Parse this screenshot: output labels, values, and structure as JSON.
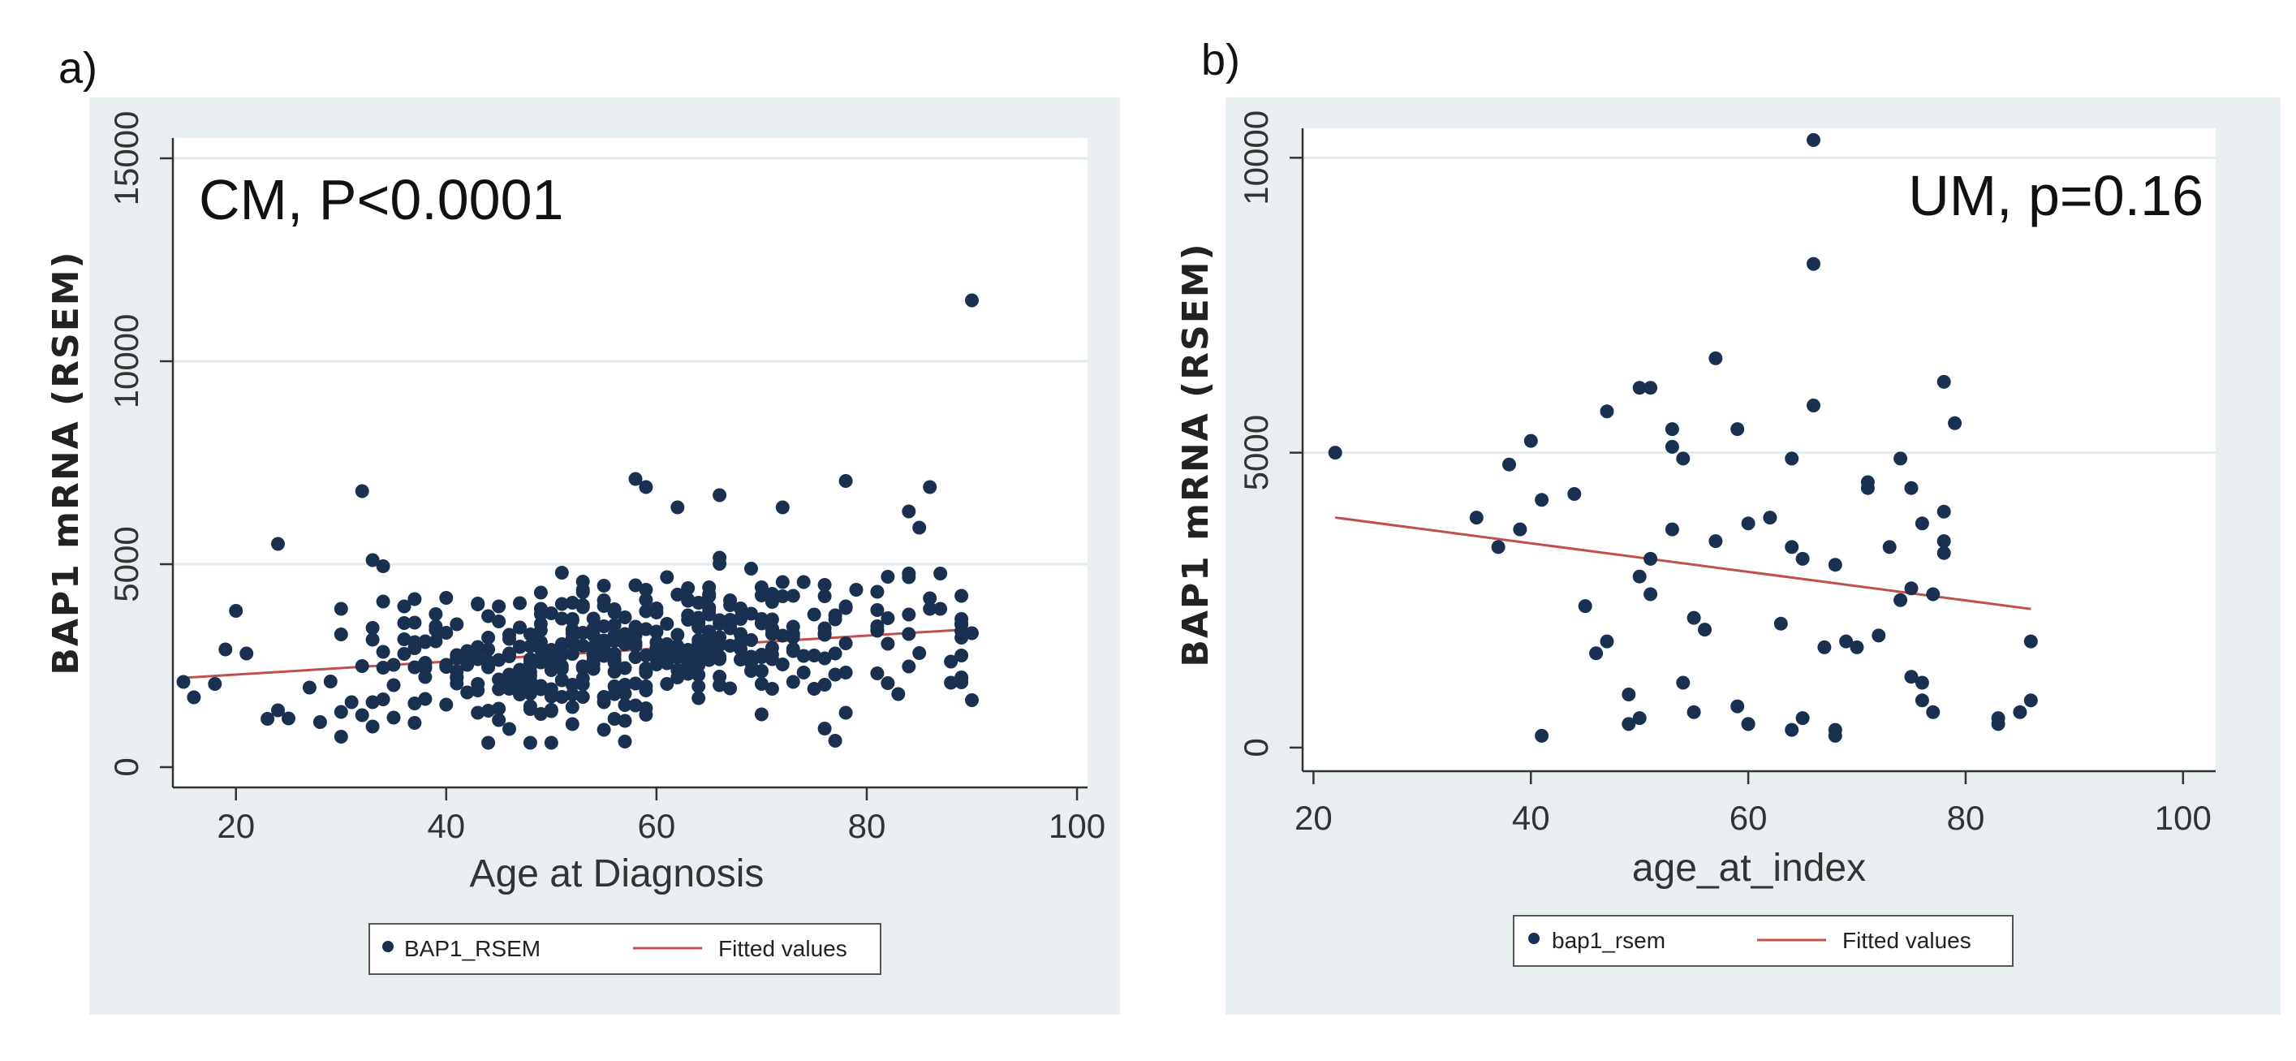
{
  "chart_data": [
    {
      "type": "scatter",
      "panel_label": "a)",
      "annotation": "CM, P<0.0001",
      "xlabel": "Age at Diagnosis",
      "ylabel": "BAP1 mRNA (RSEM)",
      "xlim": [
        14,
        101
      ],
      "ylim": [
        -500,
        15500
      ],
      "xticks": [
        20,
        40,
        60,
        80,
        100
      ],
      "yticks": [
        0,
        5000,
        10000,
        15000
      ],
      "xtick_labels": [
        "20",
        "40",
        "60",
        "80",
        "100"
      ],
      "ytick_labels": [
        "0",
        "5000",
        "10000",
        "15000"
      ],
      "colors": {
        "points": "#1a3050",
        "fit": "#c0504d"
      },
      "legend": [
        {
          "kind": "marker",
          "label": "BAP1_RSEM"
        },
        {
          "kind": "line",
          "label": "Fitted values"
        }
      ],
      "fit_line": {
        "x": [
          15,
          90
        ],
        "y": [
          2200,
          3400
        ]
      },
      "series": [
        {
          "name": "BAP1_RSEM",
          "seed": 7,
          "n": 430,
          "x": [],
          "y": []
        }
      ],
      "extra_points": [
        [
          90,
          11500
        ],
        [
          32,
          6800
        ],
        [
          24,
          5500
        ],
        [
          58,
          7100
        ],
        [
          59,
          6900
        ],
        [
          78,
          7050
        ],
        [
          86,
          6900
        ],
        [
          84,
          6300
        ],
        [
          85,
          5900
        ],
        [
          66,
          6700
        ],
        [
          62,
          6400
        ],
        [
          72,
          6400
        ],
        [
          33,
          5100
        ],
        [
          34,
          4950
        ],
        [
          20,
          3850
        ],
        [
          30,
          3900
        ],
        [
          15,
          2100
        ],
        [
          18,
          2050
        ],
        [
          25,
          1200
        ],
        [
          24,
          1400
        ],
        [
          77,
          650
        ],
        [
          76,
          950
        ],
        [
          90,
          1650
        ],
        [
          90,
          3300
        ],
        [
          19,
          2900
        ],
        [
          21,
          2800
        ],
        [
          88,
          2600
        ],
        [
          87,
          3900
        ]
      ]
    },
    {
      "type": "scatter",
      "panel_label": "b)",
      "annotation": "UM, p=0.16",
      "xlabel": "age_at_index",
      "ylabel": "BAP1 mRNA (RSEM)",
      "xlim": [
        19,
        103
      ],
      "ylim": [
        -400,
        10500
      ],
      "xticks": [
        20,
        40,
        60,
        80,
        100
      ],
      "yticks": [
        0,
        5000,
        10000
      ],
      "xtick_labels": [
        "20",
        "40",
        "60",
        "80",
        "100"
      ],
      "ytick_labels": [
        "0",
        "5000",
        "10000"
      ],
      "colors": {
        "points": "#1a3050",
        "fit": "#c0504d"
      },
      "legend": [
        {
          "kind": "marker",
          "label": "bap1_rsem"
        },
        {
          "kind": "line",
          "label": "Fitted values"
        }
      ],
      "fit_line": {
        "x": [
          22,
          86
        ],
        "y": [
          3900,
          2350
        ]
      },
      "series": [
        {
          "name": "bap1_rsem",
          "x": [
            22,
            35,
            37,
            38,
            39,
            40,
            41,
            41,
            44,
            45,
            46,
            47,
            47,
            49,
            49,
            50,
            50,
            50,
            51,
            51,
            51,
            53,
            53,
            53,
            54,
            54,
            55,
            55,
            56,
            57,
            57,
            59,
            59,
            60,
            60,
            60,
            62,
            63,
            64,
            64,
            64,
            65,
            65,
            66,
            66,
            66,
            67,
            68,
            68,
            68,
            69,
            70,
            71,
            71,
            72,
            73,
            74,
            74,
            75,
            75,
            75,
            76,
            76,
            76,
            77,
            77,
            78,
            78,
            78,
            78,
            79,
            83,
            83,
            85,
            86,
            86
          ],
          "y": [
            5000,
            3900,
            3400,
            4800,
            3700,
            5200,
            4200,
            200,
            4300,
            2400,
            1600,
            1800,
            5700,
            900,
            400,
            6100,
            2900,
            500,
            6100,
            3200,
            2600,
            5400,
            5100,
            3700,
            4900,
            1100,
            2200,
            600,
            2000,
            6600,
            3500,
            5400,
            700,
            3800,
            400,
            400,
            3900,
            2100,
            4900,
            3400,
            300,
            3200,
            500,
            10300,
            8200,
            5800,
            1700,
            3100,
            300,
            200,
            1800,
            1700,
            4500,
            4400,
            1900,
            3400,
            4900,
            2500,
            4400,
            2700,
            1200,
            3800,
            1100,
            800,
            2600,
            600,
            6200,
            4000,
            3300,
            3500,
            5500,
            500,
            400,
            600,
            800,
            1800
          ]
        }
      ]
    }
  ]
}
